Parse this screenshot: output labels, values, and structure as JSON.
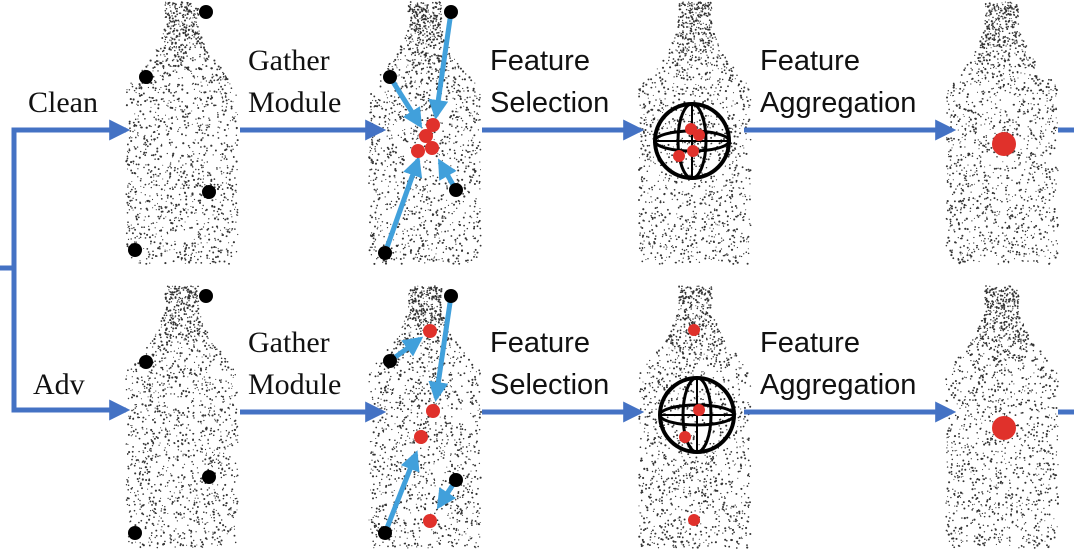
{
  "inputs": {
    "clean": "Clean",
    "adv": "Adv"
  },
  "steps": {
    "gather_line1": "Gather",
    "gather_line2": "Module",
    "selection_line1": "Feature",
    "selection_line2": "Selection",
    "aggregation_line1": "Feature",
    "aggregation_line2": "Aggregation"
  },
  "colors": {
    "arrow": "#4472C4",
    "gather_arrow": "#41A0DB",
    "red_point": "#E0312B",
    "black_point": "#000000",
    "cloud_dots": "#333333"
  },
  "icons": [
    "bottle-point-cloud-icon",
    "sphere-icon",
    "arrow-icon"
  ]
}
